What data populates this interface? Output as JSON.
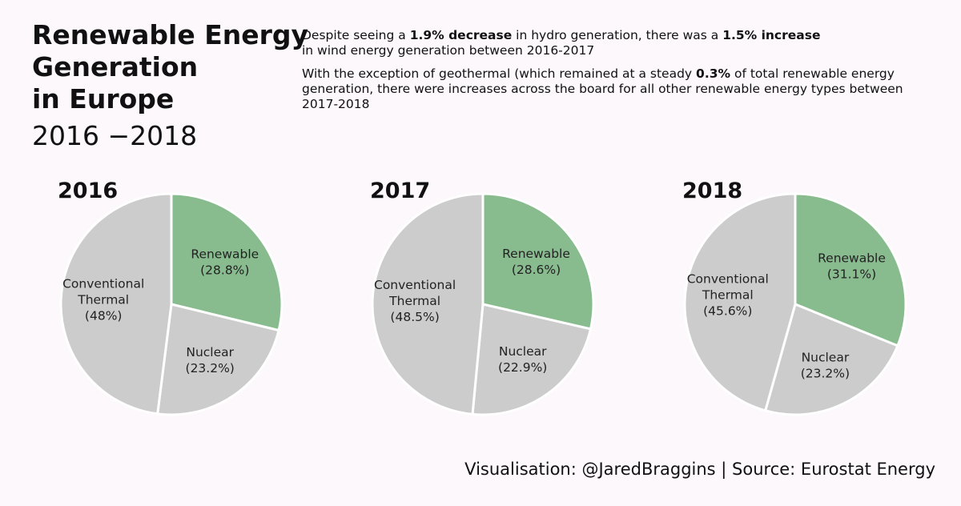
{
  "title_lines": [
    "Renewable Energy",
    "Generation",
    "in Europe"
  ],
  "subtitle": "2016 −2018",
  "notes": {
    "p1": {
      "t1": "Despite seeing a ",
      "b1": "1.9% decrease",
      "t2": " in hydro generation, there was a ",
      "b2": "1.5% increase",
      "t3": "in wind energy generation between 2016-2017"
    },
    "p2": {
      "t1": "With the exception of geothermal (which remained at a steady ",
      "b1": "0.3%",
      "t2": " of total renewable energy generation, there were increases across the board for all other renewable energy types between 2017-2018"
    }
  },
  "footer": "Visualisation: @JaredBraggins  |  Source: Eurostat Energy",
  "colors": {
    "renewable": "#88bb8e",
    "other": "#cccccc",
    "stroke": "#ffffff"
  },
  "chart_data": [
    {
      "type": "pie",
      "title": "2016",
      "slices": [
        {
          "label_lines": [
            "Renewable"
          ],
          "pct_text": "(28.8%)",
          "value": 28.8,
          "color_key": "renewable"
        },
        {
          "label_lines": [
            "Nuclear"
          ],
          "pct_text": "(23.2%)",
          "value": 23.2,
          "color_key": "other"
        },
        {
          "label_lines": [
            "Conventional",
            "Thermal"
          ],
          "pct_text": "(48%)",
          "value": 48.0,
          "color_key": "other"
        }
      ]
    },
    {
      "type": "pie",
      "title": "2017",
      "slices": [
        {
          "label_lines": [
            "Renewable"
          ],
          "pct_text": "(28.6%)",
          "value": 28.6,
          "color_key": "renewable"
        },
        {
          "label_lines": [
            "Nuclear"
          ],
          "pct_text": "(22.9%)",
          "value": 22.9,
          "color_key": "other"
        },
        {
          "label_lines": [
            "Conventional",
            "Thermal"
          ],
          "pct_text": "(48.5%)",
          "value": 48.5,
          "color_key": "other"
        }
      ]
    },
    {
      "type": "pie",
      "title": "2018",
      "slices": [
        {
          "label_lines": [
            "Renewable"
          ],
          "pct_text": "(31.1%)",
          "value": 31.1,
          "color_key": "renewable"
        },
        {
          "label_lines": [
            "Nuclear"
          ],
          "pct_text": "(23.2%)",
          "value": 23.2,
          "color_key": "other"
        },
        {
          "label_lines": [
            "Conventional",
            "Thermal"
          ],
          "pct_text": "(45.6%)",
          "value": 45.6,
          "color_key": "other"
        }
      ]
    }
  ]
}
